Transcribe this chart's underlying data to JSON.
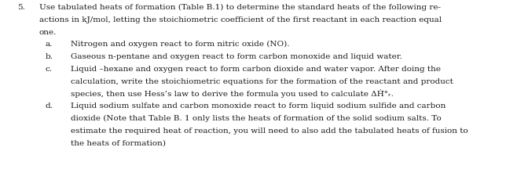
{
  "figsize": [
    6.44,
    2.26
  ],
  "dpi": 100,
  "background_color": "#ffffff",
  "font_family": "DejaVu Serif",
  "font_size": 7.5,
  "text_color": "#1a1a1a",
  "number": "5.",
  "intro_line1": "Use tabulated heats of formation (Table B.1) to determine the standard heats of the following re-",
  "intro_line2": "actions in kJ/mol, letting the stoichiometric coefficient of the first reactant in each reaction equal",
  "intro_line3": "one.",
  "item_a_label": "a.",
  "item_a_text": "Nitrogen and oxygen react to form nitric oxide (NO).",
  "item_b_label": "b.",
  "item_b_text": "Gaseous n-pentane and oxygen react to form carbon monoxide and liquid water.",
  "item_c_label": "c.",
  "item_c_line1": "Liquid –hexane and oxygen react to form carbon dioxide and water vapor. After doing the",
  "item_c_line2": "calculation, write the stoichiometric equations for the formation of the reactant and product",
  "item_c_line3": "species, then use Hess’s law to derive the formula you used to calculate ΔḢ̅°ᵣ.",
  "item_d_label": "d.",
  "item_d_line1": "Liquid sodium sulfate and carbon monoxide react to form liquid sodium sulfide and carbon",
  "item_d_line2": "dioxide (Note that Table B. 1 only lists the heats of formation of the solid sodium salts. To",
  "item_d_line3": "estimate the required heat of reaction, you will need to also add the tabulated heats of fusion to",
  "item_d_line4": "the heats of formation)"
}
